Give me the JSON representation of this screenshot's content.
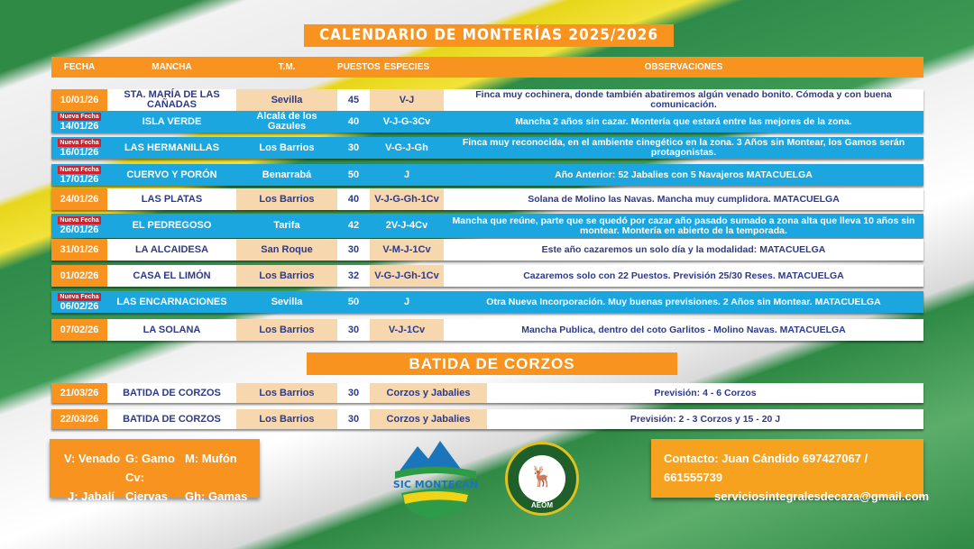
{
  "title": "CALENDARIO DE MONTERÍAS 2025/2026",
  "headers": [
    "FECHA",
    "MANCHA",
    "T.M.",
    "PUESTOS",
    "ESPECIES",
    "OBSERVACIONES"
  ],
  "badge": "Nueva Fecha",
  "rows": [
    {
      "fecha": "10/01/26",
      "mancha": "STA. MARÍA DE LAS CAÑADAS",
      "tm": "Sevilla",
      "puestos": "45",
      "especies": "V-J",
      "obs": "Finca muy cochinera, donde también abatiremos algún venado bonito. Cómoda y con buena comunicación.",
      "nueva": false
    },
    {
      "fecha": "14/01/26",
      "mancha": "ISLA VERDE",
      "tm": "Alcalá de los Gazules",
      "puestos": "40",
      "especies": "V-J-G-3Cv",
      "obs": "Mancha 2 años sin cazar. Montería que estará entre las mejores de la zona.",
      "nueva": true
    },
    {
      "fecha": "16/01/26",
      "mancha": "LAS HERMANILLAS",
      "tm": "Los Barrios",
      "puestos": "30",
      "especies": "V-G-J-Gh",
      "obs": "Finca muy reconocida, en el ambiente cinegético en la zona. 3 Años sin Montear, los Gamos serán protagonistas.",
      "nueva": true
    },
    {
      "fecha": "17/01/26",
      "mancha": "CUERVO Y PORÓN",
      "tm": "Benarrabá",
      "puestos": "50",
      "especies": "J",
      "obs": "Año Anterior: 52 Jabalies con 5 Navajeros MATACUELGA",
      "nueva": true
    },
    {
      "fecha": "24/01/26",
      "mancha": "LAS PLATAS",
      "tm": "Los Barrios",
      "puestos": "40",
      "especies": "V-J-G-Gh-1Cv",
      "obs": "Solana de Molino las Navas. Mancha muy cumplidora. MATACUELGA",
      "nueva": false
    },
    {
      "fecha": "26/01/26",
      "mancha": "EL PEDREGOSO",
      "tm": "Tarifa",
      "puestos": "42",
      "especies": "2V-J-4Cv",
      "obs": "Mancha que reúne, parte que se quedó por cazar año pasado sumado a zona alta que lleva 10 años sin montear. Montería en abierto de la temporada.",
      "nueva": true
    },
    {
      "fecha": "31/01/26",
      "mancha": "LA ALCAIDESA",
      "tm": "San Roque",
      "puestos": "30",
      "especies": "V-M-J-1Cv",
      "obs": "Este año cazaremos un solo día y la modalidad: MATACUELGA",
      "nueva": false
    },
    {
      "fecha": "01/02/26",
      "mancha": "CASA EL LIMÓN",
      "tm": "Los Barrios",
      "puestos": "32",
      "especies": "V-G-J-Gh-1Cv",
      "obs": "Cazaremos solo con 22 Puestos. Previsión 25/30 Reses. MATACUELGA",
      "nueva": false
    },
    {
      "fecha": "06/02/26",
      "mancha": "LAS ENCARNACIONES",
      "tm": "Sevilla",
      "puestos": "50",
      "especies": "J",
      "obs": "Otra Nueva Incorporación.  Muy buenas previsiones. 2 Años sin Montear. MATACUELGA",
      "nueva": true
    },
    {
      "fecha": "07/02/26",
      "mancha": "LA SOLANA",
      "tm": "Los Barrios",
      "puestos": "30",
      "especies": "V-J-1Cv",
      "obs": "Mancha Publica, dentro del coto Garlitos - Molino Navas. MATACUELGA",
      "nueva": false
    }
  ],
  "batida_title": "BATIDA DE CORZOS",
  "batida": [
    {
      "fecha": "21/03/26",
      "mancha": "BATIDA DE CORZOS",
      "tm": "Los Barrios",
      "puestos": "30",
      "especies": "Corzos y Jabalies",
      "obs": "Previsión: 4 - 6 Corzos"
    },
    {
      "fecha": "22/03/26",
      "mancha": "BATIDA DE CORZOS",
      "tm": "Los Barrios",
      "puestos": "30",
      "especies": "Corzos y Jabalies",
      "obs": "Previsión: 2 - 3 Corzos y 15 - 20 J"
    }
  ],
  "legend": [
    "V: Venado",
    "G: Gamo",
    "M: Mufón",
    "J: Jabalí",
    "Cv: Ciervas",
    "Gh: Gamas"
  ],
  "contact": {
    "line1": "Contacto:  Juan Cándido  697427067 / 661555739",
    "email": "serviciosintegralesdecaza@gmail.com"
  },
  "logos": {
    "sic": "SIC MONTECAN",
    "aeom": "AEOM"
  },
  "colors": {
    "orange": "#f7931e",
    "blue": "#1ba6e0",
    "tan": "#f6d7ae",
    "navy": "#2e3a87",
    "badge": "#d3202a"
  }
}
